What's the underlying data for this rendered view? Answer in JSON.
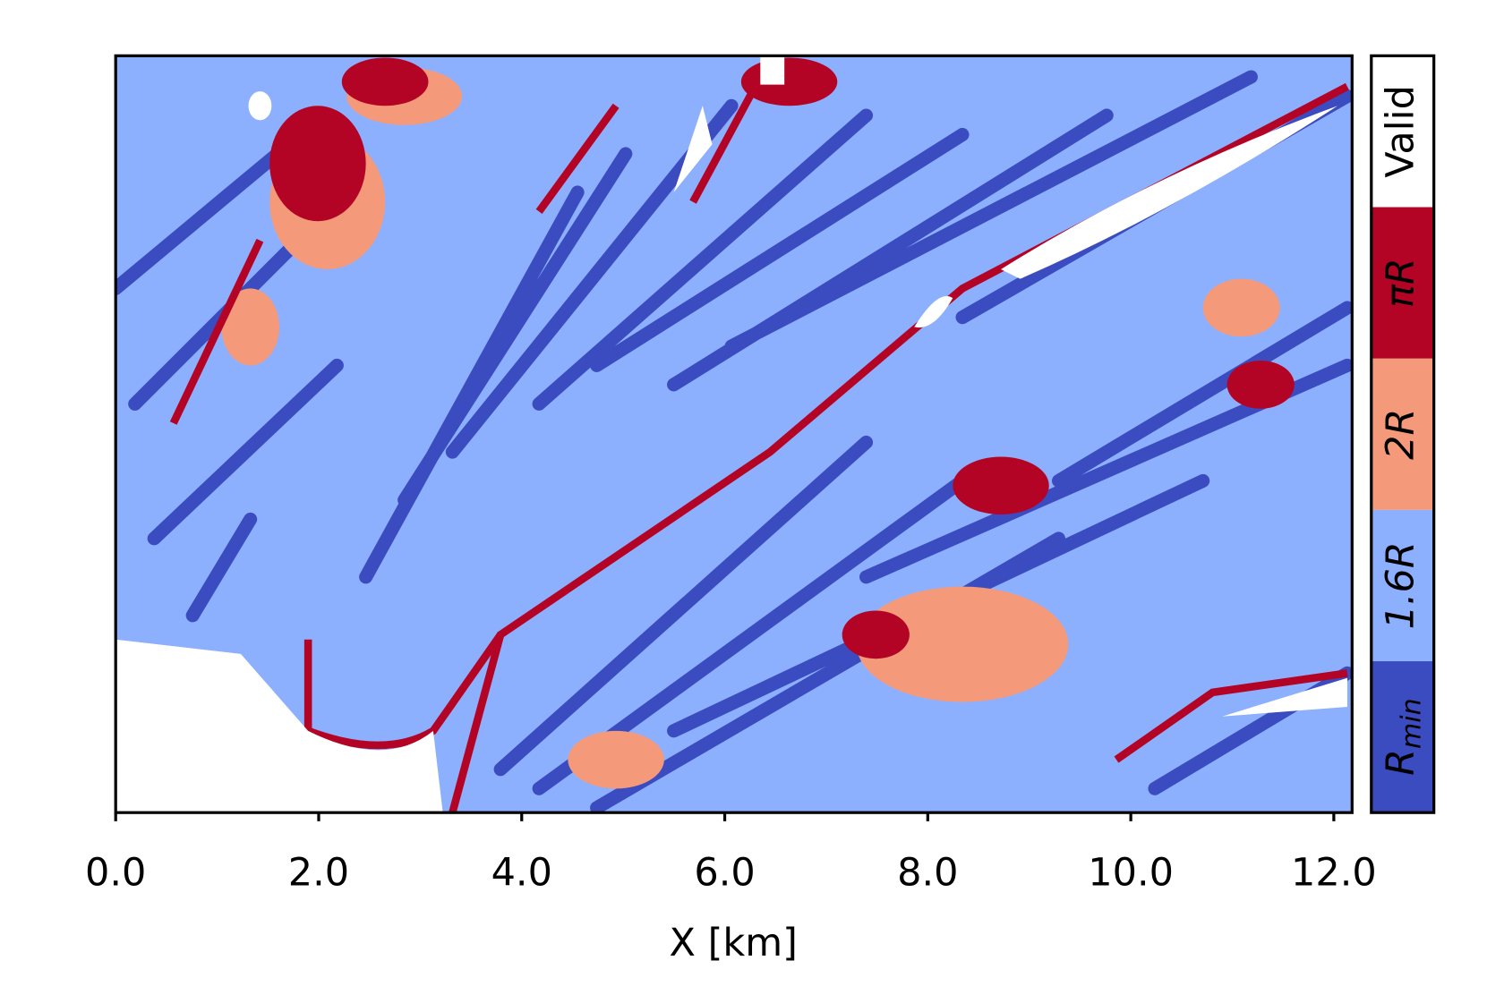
{
  "chart_data": {
    "type": "categorical_map",
    "xlabel": "X [km]",
    "xlim": [
      0,
      12.18
    ],
    "xticks": [
      {
        "value": 0,
        "label": "0.0"
      },
      {
        "value": 2,
        "label": "2.0"
      },
      {
        "value": 4,
        "label": "4.0"
      },
      {
        "value": 6,
        "label": "6.0"
      },
      {
        "value": 8,
        "label": "8.0"
      },
      {
        "value": 10,
        "label": "10.0"
      },
      {
        "value": 12,
        "label": "12.0"
      }
    ],
    "colorbar": [
      {
        "label": "R",
        "subscript": "min",
        "color": "#3b4cc0"
      },
      {
        "label": "1.6R",
        "color": "#8db0fe"
      },
      {
        "label": "2R",
        "color": "#f49a7b"
      },
      {
        "label": "πR",
        "color": "#b40426"
      },
      {
        "label": "Valid",
        "color": "#ffffff"
      }
    ]
  }
}
